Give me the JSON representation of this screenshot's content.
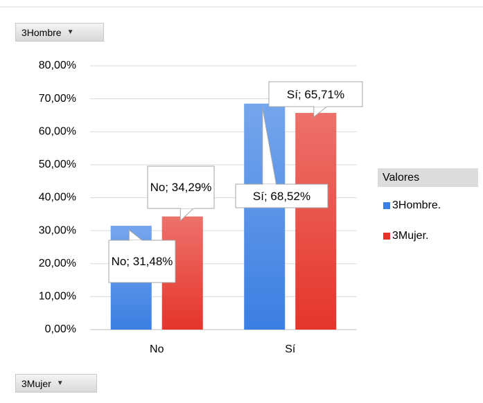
{
  "chart_data": {
    "type": "bar",
    "report_filter": "3Hombre",
    "axis_field": "3Mujer",
    "legend_title": "Valores",
    "legend": "right",
    "grid": true,
    "categories": [
      "No",
      "Sí"
    ],
    "series": [
      {
        "name": "3Hombre.",
        "color": "#3b7fe3",
        "values": [
          31.48,
          68.52
        ],
        "value_labels": [
          "No; 31,48%",
          "Sí; 68,52%"
        ]
      },
      {
        "name": "3Mujer.",
        "color": "#e5352b",
        "values": [
          34.29,
          65.71
        ],
        "value_labels": [
          "No; 34,29%",
          "Sí; 65,71%"
        ]
      }
    ],
    "ylim": [
      0,
      80
    ],
    "yticks": [
      {
        "value": 0,
        "label": "0,00%"
      },
      {
        "value": 10,
        "label": "10,00%"
      },
      {
        "value": 20,
        "label": "20,00%"
      },
      {
        "value": 30,
        "label": "30,00%"
      },
      {
        "value": 40,
        "label": "40,00%"
      },
      {
        "value": 50,
        "label": "50,00%"
      },
      {
        "value": 60,
        "label": "60,00%"
      },
      {
        "value": 70,
        "label": "70,00%"
      },
      {
        "value": 80,
        "label": "80,00%"
      }
    ]
  }
}
